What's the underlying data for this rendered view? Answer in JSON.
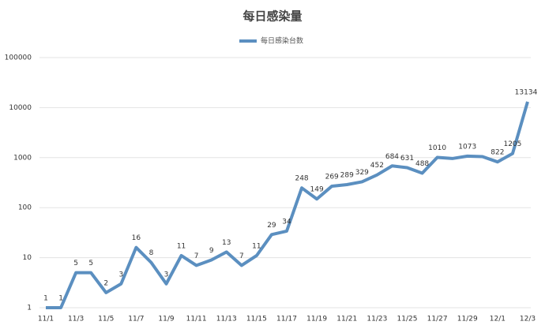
{
  "chart_data": {
    "type": "line",
    "title": "每日感染量",
    "categories": [
      "11/1",
      null,
      "11/3",
      null,
      "11/5",
      null,
      "11/7",
      null,
      "11/9",
      null,
      "11/11",
      null,
      "11/13",
      null,
      "11/15",
      null,
      "11/17",
      null,
      "11/19",
      null,
      "11/21",
      null,
      "11/23",
      null,
      "11/25",
      null,
      "11/27",
      null,
      "11/29",
      null,
      "12/1",
      null,
      "12/3"
    ],
    "series": [
      {
        "name": "每日感染台数",
        "color": "#5b8fc0",
        "values": [
          1,
          1,
          5,
          5,
          2,
          3,
          16,
          8,
          3,
          11,
          7,
          9,
          13,
          7,
          11,
          29,
          34,
          248,
          149,
          269,
          289,
          329,
          452,
          684,
          631,
          488,
          1010,
          960,
          1073,
          1050,
          822,
          1205,
          13134
        ],
        "value_labels": [
          "1",
          "1",
          "5",
          "5",
          "2",
          "3",
          "16",
          "8",
          "3",
          "11",
          "7",
          "9",
          "13",
          "7",
          "11",
          "29",
          "34",
          "248",
          "149",
          "269",
          "289",
          "329",
          "452",
          "684",
          "631",
          "488",
          "1010",
          null,
          "1073",
          null,
          "822",
          "1205",
          "13134"
        ]
      }
    ],
    "ylim": [
      1,
      100000
    ],
    "yticks": [
      1,
      10,
      100,
      1000,
      10000,
      100000
    ],
    "log_scale": true,
    "grid": true,
    "legend": "top"
  }
}
